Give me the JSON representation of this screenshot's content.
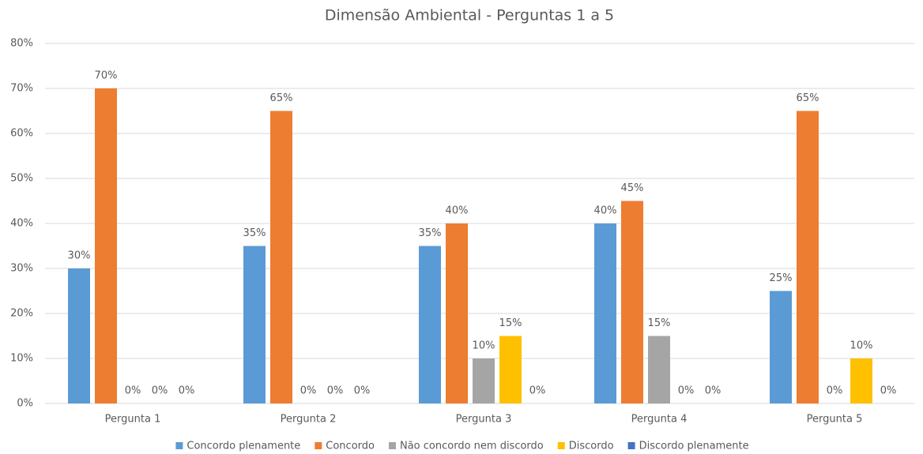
{
  "chart_data": {
    "type": "bar",
    "title": "Dimensão Ambiental - Perguntas 1 a 5",
    "categories": [
      "Pergunta 1",
      "Pergunta 2",
      "Pergunta 3",
      "Pergunta 4",
      "Pergunta 5"
    ],
    "series": [
      {
        "name": "Concordo plenamente",
        "color": "#5b9bd5",
        "values": [
          30,
          35,
          35,
          40,
          25
        ],
        "value_labels": [
          "30%",
          "35%",
          "35%",
          "40%",
          "25%"
        ]
      },
      {
        "name": "Concordo",
        "color": "#ed7d31",
        "values": [
          70,
          65,
          40,
          45,
          65
        ],
        "value_labels": [
          "70%",
          "65%",
          "40%",
          "45%",
          "65%"
        ]
      },
      {
        "name": "Não concordo nem discordo",
        "color": "#a5a5a5",
        "values": [
          0,
          0,
          10,
          15,
          0
        ],
        "value_labels": [
          "0%",
          "0%",
          "10%",
          "15%",
          "0%"
        ]
      },
      {
        "name": "Discordo",
        "color": "#ffc000",
        "values": [
          0,
          0,
          15,
          0,
          10
        ],
        "value_labels": [
          "0%",
          "0%",
          "15%",
          "0%",
          "10%"
        ]
      },
      {
        "name": "Discordo plenamente",
        "color": "#4472c4",
        "values": [
          0,
          0,
          0,
          0,
          0
        ],
        "value_labels": [
          "0%",
          "0%",
          "0%",
          "0%",
          "0%"
        ]
      }
    ],
    "ylim": [
      0,
      80
    ],
    "yticks": [
      {
        "value": 0,
        "label": "0%"
      },
      {
        "value": 10,
        "label": "10%"
      },
      {
        "value": 20,
        "label": "20%"
      },
      {
        "value": 30,
        "label": "30%"
      },
      {
        "value": 40,
        "label": "40%"
      },
      {
        "value": 50,
        "label": "50%"
      },
      {
        "value": 60,
        "label": "60%"
      },
      {
        "value": 70,
        "label": "70%"
      },
      {
        "value": 80,
        "label": "80%"
      }
    ],
    "grid": true,
    "legend": "bottom"
  }
}
